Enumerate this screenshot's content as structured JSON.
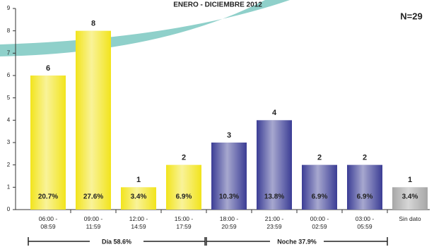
{
  "chart_data": {
    "type": "bar",
    "title": "ENERO - DICIEMBRE 2012",
    "annotation": "N=29",
    "categories": [
      "06:00 -\n08:59",
      "09:00 -\n11:59",
      "12:00 -\n14:59",
      "15:00 -\n17:59",
      "18:00 -\n20:59",
      "21:00 -\n23:59",
      "00:00 -\n02:59",
      "03:00 -\n05:59",
      "Sin dato"
    ],
    "values": [
      6,
      8,
      1,
      2,
      3,
      4,
      2,
      2,
      1
    ],
    "share_labels": [
      "20.7%",
      "27.6%",
      "3.4%",
      "6.9%",
      "10.3%",
      "13.8%",
      "6.9%",
      "6.9%",
      "3.4%"
    ],
    "colors": [
      "#f2e41c",
      "#f2e41c",
      "#f2e41c",
      "#f2e41c",
      "#3b3d95",
      "#3b3d95",
      "#3b3d95",
      "#3b3d95",
      "#a6a6a6"
    ],
    "groups": [
      "Día 58.6%",
      "Noche 37.9%"
    ],
    "ylim": [
      0,
      9
    ],
    "yticks": [
      0,
      1,
      2,
      3,
      4,
      5,
      6,
      7,
      8,
      9
    ]
  }
}
